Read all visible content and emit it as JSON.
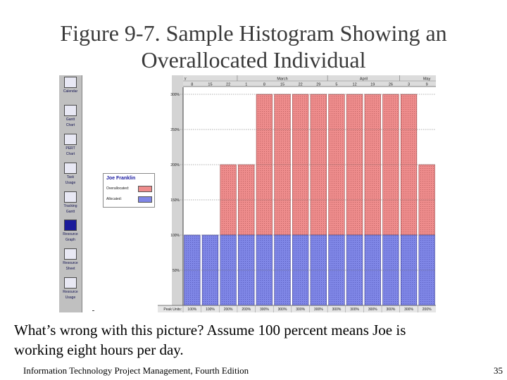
{
  "slide": {
    "title_line1": "Figure 9-7. Sample Histogram Showing an",
    "title_line2": "Overallocated Individual",
    "caption_line1": "What’s wrong with this picture?  Assume 100 percent means Joe is",
    "caption_line2": "working eight hours per day.",
    "footer": "Information Technology Project Management, Fourth Edition",
    "page_number": "35"
  },
  "view_bar": {
    "items": [
      {
        "label1": "Calendar",
        "label2": "",
        "icon": "calendar-icon"
      },
      {
        "label1": "Gantt",
        "label2": "Chart",
        "icon": "gantt-chart-icon"
      },
      {
        "label1": "PERT",
        "label2": "Chart",
        "icon": "pert-chart-icon"
      },
      {
        "label1": "Task",
        "label2": "Usage",
        "icon": "task-usage-icon"
      },
      {
        "label1": "Tracking",
        "label2": "Gantt",
        "icon": "tracking-gantt-icon"
      },
      {
        "label1": "Resource",
        "label2": "Graph",
        "icon": "resource-graph-icon"
      },
      {
        "label1": "Resource",
        "label2": "Sheet",
        "icon": "resource-sheet-icon"
      },
      {
        "label1": "Resource",
        "label2": "Usage",
        "icon": "resource-usage-icon"
      }
    ],
    "active_index": 5
  },
  "legend": {
    "name": "Joe Franklin",
    "overallocated_label": "Overallocated:",
    "allocated_label": "Allocated:"
  },
  "colors": {
    "overallocated": "#ee8c8c",
    "allocated": "#7f86e6",
    "grid": "#606060"
  },
  "chart_data": {
    "type": "bar",
    "months": [
      {
        "label": "March",
        "start": 3,
        "end": 7
      },
      {
        "label": "April",
        "start": 8,
        "end": 11
      },
      {
        "label": "May",
        "start": 12,
        "end": 14
      }
    ],
    "partial_month_label": "y",
    "categories": [
      "8",
      "15",
      "22",
      "1",
      "8",
      "15",
      "22",
      "29",
      "5",
      "12",
      "19",
      "26",
      "3",
      "9"
    ],
    "y_ticks": [
      "50%",
      "100%",
      "150%",
      "200%",
      "250%",
      "300%"
    ],
    "ylim": [
      0,
      310
    ],
    "row_label": "Peak Units:",
    "peak_units": [
      "100%",
      "100%",
      "200%",
      "200%",
      "300%",
      "300%",
      "300%",
      "300%",
      "300%",
      "300%",
      "300%",
      "300%",
      "300%",
      "200%"
    ],
    "series": [
      {
        "name": "Allocated:",
        "values": [
          100,
          100,
          100,
          100,
          100,
          100,
          100,
          100,
          100,
          100,
          100,
          100,
          100,
          100
        ]
      },
      {
        "name": "Overallocated:",
        "values": [
          0,
          0,
          100,
          100,
          200,
          200,
          200,
          200,
          200,
          200,
          200,
          200,
          200,
          100
        ]
      }
    ]
  }
}
